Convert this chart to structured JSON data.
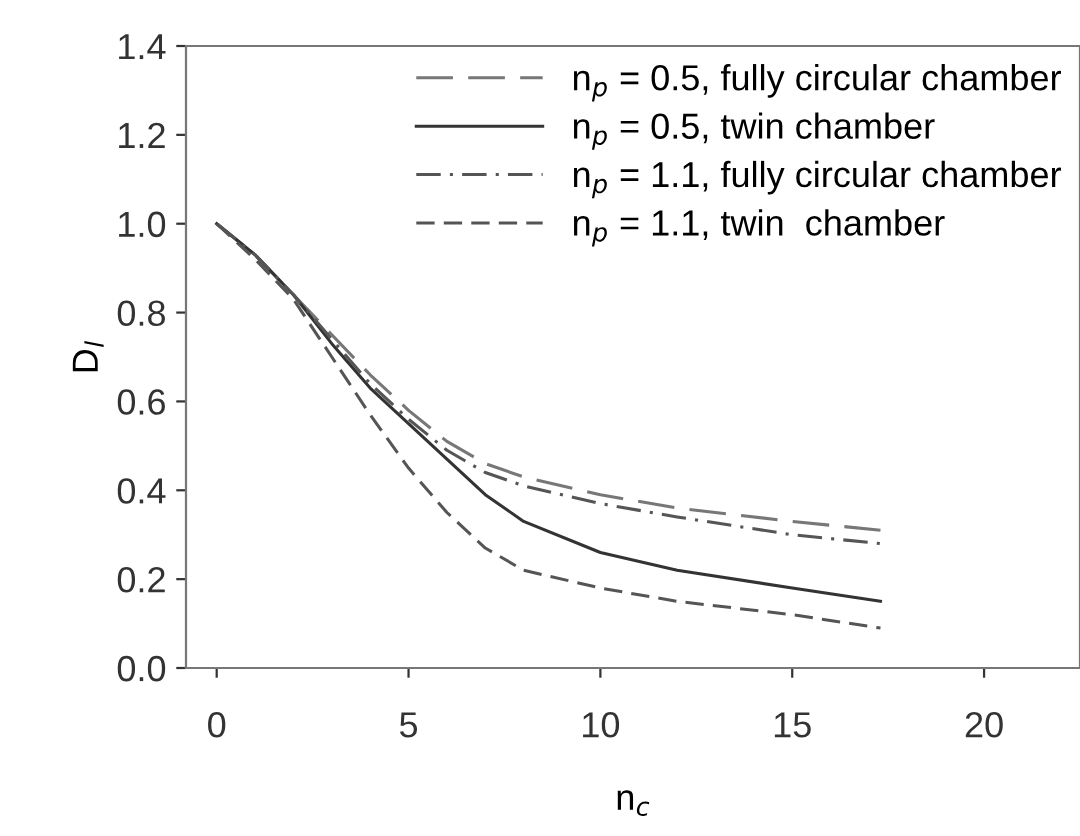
{
  "chart_data": {
    "type": "line",
    "xlabel": "n$_{c}$",
    "ylabel": "D$_{l}$",
    "xlim": [
      -0.8,
      22.5
    ],
    "ylim": [
      0,
      1.4
    ],
    "xticks": [
      0,
      5,
      10,
      15,
      20
    ],
    "yticks": [
      {
        "value": 0,
        "label": "0.0"
      },
      {
        "value": 0.2,
        "label": "0.2"
      },
      {
        "value": 0.4,
        "label": "0.4"
      },
      {
        "value": 0.6,
        "label": "0.6"
      },
      {
        "value": 0.8,
        "label": "0.8"
      },
      {
        "value": 1.0,
        "label": "1.0"
      },
      {
        "value": 1.2,
        "label": "1.2"
      },
      {
        "value": 1.4,
        "label": "1.4"
      }
    ],
    "grid": false,
    "legend": "top right",
    "marker": "none",
    "series": [
      {
        "name": "n$_{p}$ = 0.5, fully circular chamber",
        "color": "#777777",
        "line_style": "longdash",
        "x": [
          0,
          1,
          2,
          3,
          4,
          5,
          6,
          7,
          8,
          10,
          12,
          15,
          17.3
        ],
        "values": [
          1.0,
          0.93,
          0.84,
          0.75,
          0.66,
          0.58,
          0.51,
          0.46,
          0.43,
          0.39,
          0.36,
          0.33,
          0.31
        ]
      },
      {
        "name": "n$_{p}$ = 0.5, twin chamber",
        "color": "#333333",
        "line_style": "solid",
        "x": [
          0,
          1,
          2,
          3,
          4,
          5,
          6,
          7,
          8,
          10,
          12,
          15,
          17.3
        ],
        "values": [
          1.0,
          0.93,
          0.84,
          0.73,
          0.63,
          0.55,
          0.47,
          0.39,
          0.33,
          0.26,
          0.22,
          0.18,
          0.15
        ]
      },
      {
        "name": "n$_{p}$ = 1.1, fully circular chamber",
        "color": "#555555",
        "line_style": "dashdot",
        "x": [
          0,
          1,
          2,
          3,
          4,
          5,
          6,
          7,
          8,
          10,
          12,
          15,
          17.3
        ],
        "values": [
          1.0,
          0.93,
          0.84,
          0.74,
          0.64,
          0.56,
          0.49,
          0.44,
          0.41,
          0.37,
          0.34,
          0.3,
          0.28
        ]
      },
      {
        "name": "n$_{p}$ = 1.1, twin  chamber",
        "color": "#555555",
        "line_style": "dashed",
        "x": [
          0,
          1,
          2,
          3,
          4,
          5,
          6,
          7,
          8,
          10,
          12,
          15,
          17.3
        ],
        "values": [
          1.0,
          0.92,
          0.83,
          0.7,
          0.57,
          0.45,
          0.35,
          0.27,
          0.22,
          0.18,
          0.15,
          0.12,
          0.09
        ]
      }
    ]
  }
}
